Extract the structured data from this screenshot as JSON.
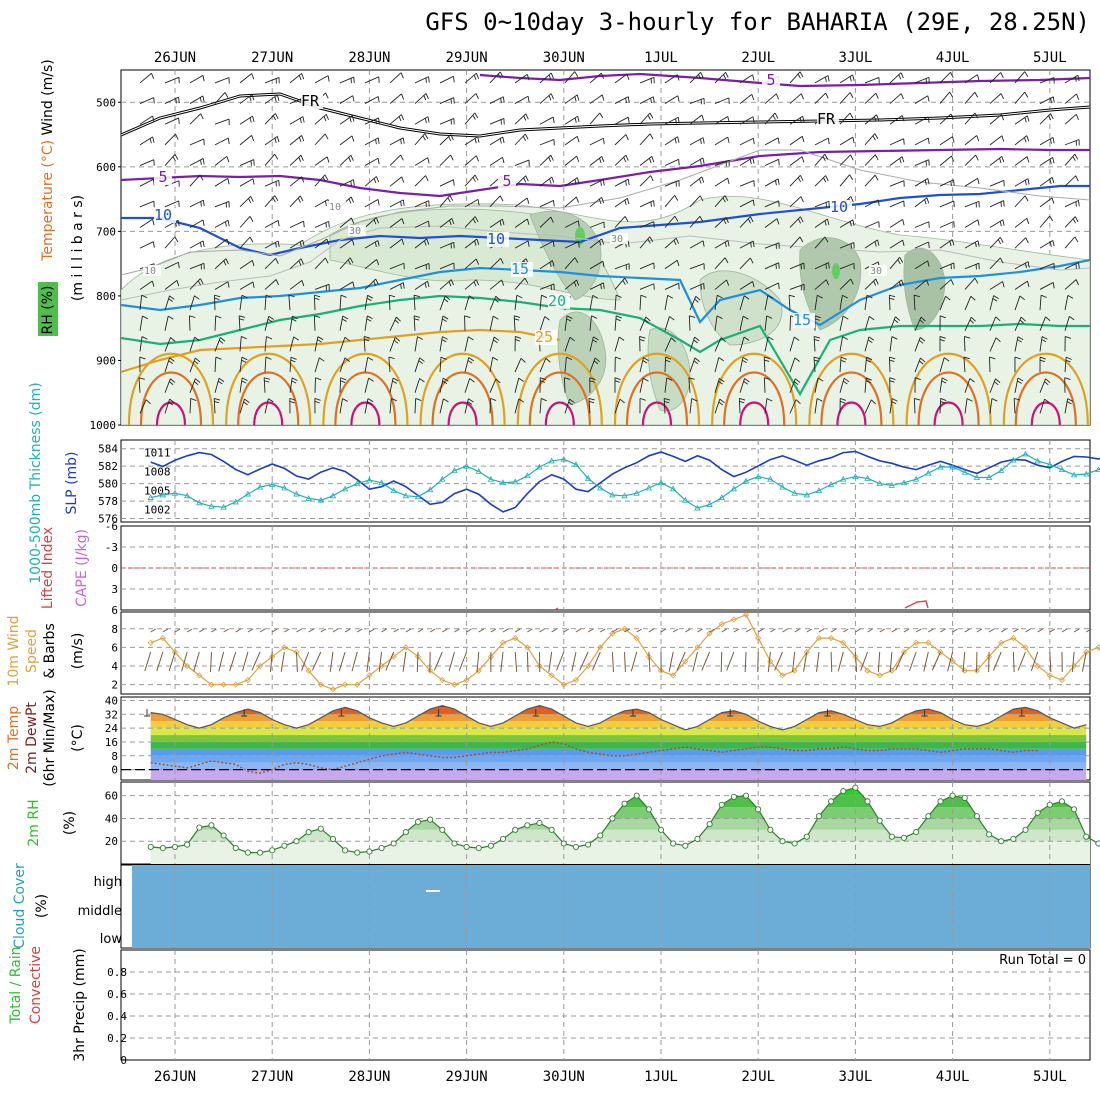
{
  "title": "GFS 0~10day 3-hourly for BAHARIA (29E, 28.25N)",
  "dates": [
    "26JUN",
    "27JUN",
    "28JUN",
    "29JUN",
    "30JUN",
    "1JUL",
    "2JUL",
    "3JUL",
    "4JUL",
    "5JUL"
  ],
  "colors": {
    "purple": "#7a1fa8",
    "blue": "#1e4fd6",
    "lightblue": "#1e90e0",
    "green": "#19b07a",
    "orange": "#e0a020",
    "darkorange": "#e07020",
    "magenta": "#d0107a",
    "wind": "#000000",
    "rh": "#2f8f2f",
    "cape": "#cc66cc",
    "lifted": "#e04040",
    "slp": "#1a3cc8",
    "thick": "#20b0b8",
    "cloud": "#6badd6"
  },
  "panels": {
    "upper": {
      "ylabel_wind": "Wind (m/s)",
      "ylabel_temp": "Temperature (°C)",
      "ylabel_rh": "RH (%)",
      "ylabel_mb": "(m i l l i b a r s)",
      "yticks": [
        "500",
        "600",
        "700",
        "800",
        "900",
        "1000"
      ],
      "contour_labels": [
        "FR",
        "FR",
        "5",
        "5",
        "5",
        "10",
        "10",
        "10",
        "15",
        "15",
        "20",
        "25",
        "10",
        "10",
        "30",
        "30",
        "30"
      ]
    },
    "slp": {
      "ylabel_thick": "1000-500mb Thickness (dm)",
      "ylabel_slp": "SLP (mb)",
      "left_ticks": [
        "584",
        "582",
        "580",
        "578",
        "576"
      ],
      "right_ticks": [
        "1011",
        "1008",
        "1005",
        "1002"
      ]
    },
    "cape": {
      "ylabel_li": "Lifted Index",
      "ylabel_cape": "CAPE (J/kg)",
      "ticks": [
        "-6",
        "-3",
        "0",
        "3",
        "6"
      ]
    },
    "wind10": {
      "ylabel1": "10m Wind",
      "ylabel2": "Speed",
      "ylabel3": "& Barbs",
      "unit": "(m/s)",
      "ticks": [
        "8",
        "6",
        "4",
        "2"
      ]
    },
    "temp2m": {
      "ylabel1": "2m Temp",
      "ylabel2": "2m DewPt",
      "ylabel3": "(6hr Min/Max)",
      "unit": "(°C)",
      "ticks": [
        "40",
        "32",
        "24",
        "16",
        "8",
        "0"
      ]
    },
    "rh2m": {
      "ylabel": "2m RH",
      "unit": "(%)",
      "ticks": [
        "60",
        "40",
        "20"
      ]
    },
    "cloud": {
      "ylabel": "Cloud Cover",
      "unit": "(%)",
      "levels": [
        "high",
        "middle",
        "low"
      ]
    },
    "precip": {
      "ylabel1": "Total / Rain",
      "ylabel2": "Convective",
      "ylabel3": "3hr Precip (mm)",
      "run_total": "Run Total = 0",
      "ticks": [
        "0.8",
        "0.6",
        "0.4",
        "0.2",
        "0"
      ]
    }
  },
  "chart_data": [
    {
      "type": "line",
      "title": "1000-500mb Thickness (dm) / SLP (mb)",
      "x_start": "25JUN 18Z",
      "x_step_hours": 3,
      "series": [
        {
          "name": "SLP (mb)",
          "values": [
            1009.5,
            1008.8,
            1009.8,
            1010.5,
            1011,
            1010.7,
            1009.6,
            1008.3,
            1007.5,
            1008.4,
            1009.2,
            1008.5,
            1007.3,
            1006.8,
            1007.9,
            1008.6,
            1008,
            1006.7,
            1005.2,
            1005.6,
            1006.5,
            1005.6,
            1004.2,
            1002.8,
            1003.1,
            1004.5,
            1005.2,
            1004.4,
            1002.8,
            1001.6,
            1002.3,
            1004.5,
            1006.4,
            1007.5,
            1006.8,
            1005.2,
            1004.8,
            1006.2,
            1007.6,
            1008.6,
            1009.4,
            1010.5,
            1011.1,
            1010.4,
            1009.6,
            1010.5,
            1009.8,
            1008.3,
            1007.2,
            1007.9,
            1008.9,
            1009.9,
            1010.5,
            1009.8,
            1009,
            1009.7,
            1010.2,
            1011,
            1011.2,
            1010.4,
            1009.7,
            1009.3,
            1008.7,
            1008.3,
            1009,
            1009.6,
            1009,
            1008.3,
            1007.7,
            1008.6,
            1009.5,
            1009.9,
            1009.8,
            1009,
            1008.6,
            1009.6,
            1010.4,
            1010.3,
            1010,
            1010.8,
            1011.1
          ]
        },
        {
          "name": "1000-500mb Thickness (dm)",
          "values": [
            578.4,
            578.7,
            578.9,
            578.6,
            577.8,
            577.4,
            577.3,
            577.9,
            578.8,
            579.6,
            579.9,
            579.5,
            578.8,
            578.3,
            578.1,
            578.6,
            579.4,
            580,
            580.4,
            580.1,
            579.2,
            578.6,
            578.5,
            579.3,
            580.5,
            581.5,
            582,
            581.4,
            580.5,
            580.1,
            580.2,
            580.9,
            581.9,
            582.6,
            582.8,
            582.2,
            580.6,
            579.5,
            578.7,
            578.6,
            578.9,
            579.5,
            580.1,
            579.4,
            578.1,
            577.2,
            577.6,
            578.4,
            579.4,
            580.3,
            580.8,
            580.5,
            579.6,
            578.9,
            578.7,
            579.2,
            579.9,
            580.5,
            580.8,
            580.6,
            580,
            579.8,
            580.1,
            580.5,
            581.2,
            581.9,
            581.9,
            581.3,
            580.7,
            580.7,
            581.5,
            582.7,
            583.4,
            582.6,
            582.2,
            581.6,
            581,
            581.1,
            581.6,
            582.2,
            581.8
          ]
        }
      ]
    },
    {
      "type": "line",
      "title": "10m Wind Speed (m/s)",
      "x_start": "25JUN 18Z",
      "x_step_hours": 3,
      "series": [
        {
          "name": "10m Wind Speed",
          "values": [
            6.5,
            7,
            5.5,
            4,
            3,
            2,
            2,
            2,
            2.5,
            4,
            5,
            6,
            5.5,
            3.5,
            2,
            1.5,
            2,
            2,
            3,
            4,
            5,
            6,
            5,
            3.5,
            2.5,
            2,
            2.5,
            3.5,
            5,
            6.5,
            7,
            6,
            4,
            3,
            2,
            2.5,
            4,
            6,
            7.5,
            8,
            7,
            5,
            3.5,
            3,
            4.5,
            6,
            7.5,
            8.5,
            9,
            9.5,
            7,
            4.5,
            3,
            3.5,
            5.5,
            7,
            7,
            6.5,
            5,
            3.5,
            3,
            3.5,
            5.5,
            6.5,
            6.5,
            5.5,
            4.5,
            3.5,
            3.5,
            5,
            6.5,
            7,
            6,
            4,
            3,
            2.5,
            4,
            5.5,
            6,
            4,
            2.5,
            3,
            4.2
          ]
        }
      ]
    },
    {
      "type": "area",
      "title": "2m Temp (°C)",
      "x_start": "25JUN 18Z",
      "x_step_hours": 3,
      "series": [
        {
          "name": "2m Temp",
          "values": [
            33,
            32,
            29,
            26,
            24,
            26,
            30,
            33,
            35,
            33,
            29,
            26,
            24,
            26,
            30,
            34,
            36,
            34,
            30,
            27,
            25,
            27,
            31,
            35,
            37,
            35,
            31,
            27,
            25,
            27,
            31,
            35,
            37,
            35,
            31,
            27,
            25,
            27,
            31,
            34,
            35,
            33,
            29,
            26,
            23,
            25,
            29,
            33,
            34,
            32,
            28,
            25,
            23,
            25,
            29,
            33,
            34,
            32,
            29,
            26,
            25,
            27,
            31,
            34,
            35,
            33,
            29,
            26,
            25,
            27,
            31,
            35,
            36,
            34,
            30,
            27,
            24,
            26
          ]
        },
        {
          "name": "2m DewPt",
          "values": [
            4,
            3,
            2,
            1,
            3,
            5,
            4,
            3,
            -1,
            -2,
            0,
            3,
            4,
            3,
            1,
            0,
            2,
            4,
            6,
            8,
            9,
            10,
            9,
            8,
            7,
            7,
            8,
            9,
            10,
            10,
            11,
            12,
            14,
            16,
            15,
            12,
            10,
            9,
            8,
            8,
            9,
            10,
            11,
            12,
            13,
            12,
            11,
            10,
            11,
            12,
            13,
            13,
            12,
            11,
            11,
            12,
            12,
            13,
            12,
            11,
            11,
            12,
            12,
            12,
            11,
            10,
            11,
            12,
            12,
            12,
            11,
            10,
            11,
            11
          ]
        }
      ]
    },
    {
      "type": "area",
      "title": "2m RH (%)",
      "x_start": "25JUN 18Z",
      "x_step_hours": 3,
      "series": [
        {
          "name": "2m RH",
          "values": [
            15,
            14,
            15,
            17,
            32,
            34,
            25,
            14,
            10,
            10,
            12,
            16,
            20,
            28,
            31,
            22,
            12,
            10,
            11,
            14,
            18,
            28,
            37,
            39,
            30,
            18,
            15,
            14,
            16,
            22,
            30,
            34,
            36,
            30,
            18,
            15,
            17,
            25,
            40,
            53,
            60,
            48,
            30,
            18,
            16,
            22,
            35,
            52,
            59,
            60,
            48,
            30,
            20,
            18,
            24,
            42,
            55,
            64,
            67,
            55,
            38,
            24,
            23,
            28,
            42,
            55,
            60,
            58,
            42,
            26,
            20,
            22,
            30,
            45,
            52,
            55,
            48,
            24,
            18,
            18,
            25,
            40,
            48,
            50,
            30
          ]
        }
      ]
    },
    {
      "type": "line",
      "title": "3hr Precip (mm)",
      "ylim": [
        0,
        1
      ],
      "series": [
        {
          "name": "Total / Rain",
          "values": [
            0,
            0,
            0,
            0,
            0,
            0,
            0,
            0,
            0,
            0
          ]
        }
      ]
    }
  ]
}
